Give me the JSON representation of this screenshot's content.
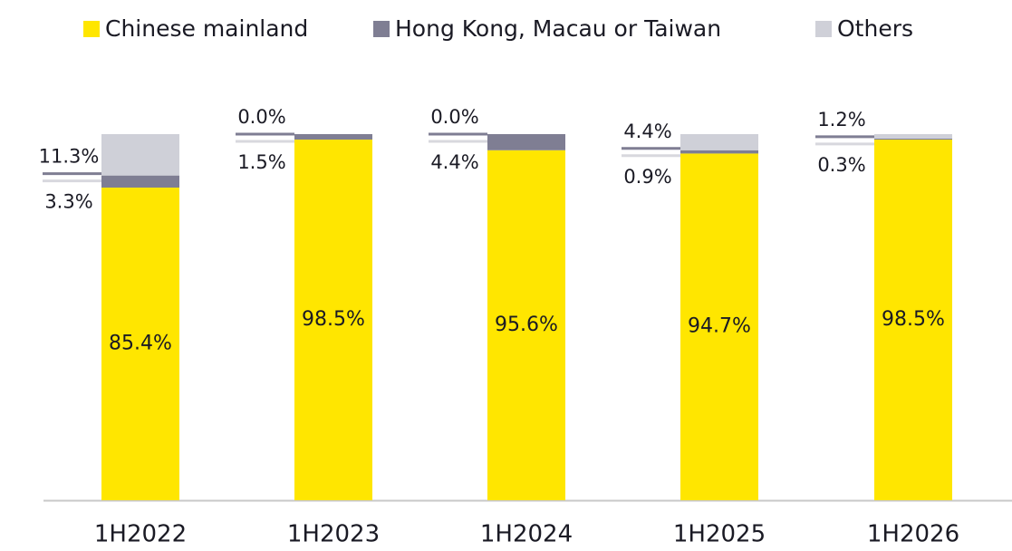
{
  "chart_data": {
    "type": "stacked_bar",
    "categories": [
      "1H2022",
      "1H2023",
      "1H2024",
      "1H2025",
      "1H2026"
    ],
    "series": [
      {
        "name": "Chinese mainland",
        "color": "#ffe600",
        "values": [
          85.4,
          98.5,
          95.6,
          94.7,
          98.5
        ],
        "value_labels": [
          "85.4%",
          "98.5%",
          "95.6%",
          "94.7%",
          "98.5%"
        ]
      },
      {
        "name": "Hong Kong, Macau or Taiwan",
        "color": "#7f7e93",
        "values": [
          3.3,
          1.5,
          4.4,
          0.9,
          0.3
        ],
        "value_labels": [
          "3.3%",
          "1.5%",
          "4.4%",
          "0.9%",
          "0.3%"
        ]
      },
      {
        "name": "Others",
        "color": "#cfd0d8",
        "values": [
          11.3,
          0.0,
          0.0,
          4.4,
          1.2
        ],
        "value_labels": [
          "11.3%",
          "0.0%",
          "0.0%",
          "4.4%",
          "1.2%"
        ]
      }
    ],
    "ylim": [
      0,
      100
    ],
    "legend": "top"
  }
}
